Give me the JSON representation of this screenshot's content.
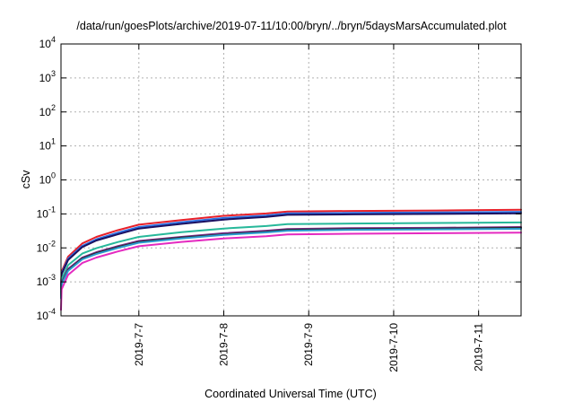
{
  "chart_data": {
    "type": "line",
    "title": "/data/run/goesPlots/archive/2019-07-11/10:00/bryn/../bryn/5daysMarsAccumulated.plot",
    "xlabel": "Coordinated Universal Time (UTC)",
    "ylabel": "cSv",
    "yscale": "log",
    "ylim": [
      0.0001,
      10000
    ],
    "xlim": [
      "2019-07-06 02:00",
      "2019-07-11 12:00"
    ],
    "grid": true,
    "y_ticks": [
      {
        "value": 0.0001,
        "base": "10",
        "exp": "-4"
      },
      {
        "value": 0.001,
        "base": "10",
        "exp": "-3"
      },
      {
        "value": 0.01,
        "base": "10",
        "exp": "-2"
      },
      {
        "value": 0.1,
        "base": "10",
        "exp": "-1"
      },
      {
        "value": 1,
        "base": "10",
        "exp": "0"
      },
      {
        "value": 10,
        "base": "10",
        "exp": "1"
      },
      {
        "value": 100,
        "base": "10",
        "exp": "2"
      },
      {
        "value": 1000,
        "base": "10",
        "exp": "3"
      },
      {
        "value": 10000,
        "base": "10",
        "exp": "4"
      }
    ],
    "x_ticks": [
      {
        "value": "2019-07-07 00:00",
        "label": "2019-7-7"
      },
      {
        "value": "2019-07-08 00:00",
        "label": "2019-7-8"
      },
      {
        "value": "2019-07-09 00:00",
        "label": "2019-7-9"
      },
      {
        "value": "2019-07-10 00:00",
        "label": "2019-7-10"
      },
      {
        "value": "2019-07-11 00:00",
        "label": "2019-7-11"
      }
    ],
    "series": [
      {
        "color": "#e8202a",
        "x": [
          "2019-07-06 02:00",
          "2019-07-06 02:10",
          "2019-07-06 04:00",
          "2019-07-06 08:00",
          "2019-07-06 12:00",
          "2019-07-06 18:00",
          "2019-07-07 00:00",
          "2019-07-07 12:00",
          "2019-07-08 00:00",
          "2019-07-08 12:00",
          "2019-07-08 18:00",
          "2019-07-09 12:00",
          "2019-07-10 12:00",
          "2019-07-11 12:00"
        ],
        "y": [
          0.0008,
          0.002,
          0.0055,
          0.0135,
          0.021,
          0.033,
          0.048,
          0.066,
          0.088,
          0.103,
          0.118,
          0.122,
          0.126,
          0.132
        ]
      },
      {
        "color": "#2f6fe0",
        "x": [
          "2019-07-06 02:00",
          "2019-07-06 02:10",
          "2019-07-06 04:00",
          "2019-07-06 08:00",
          "2019-07-06 12:00",
          "2019-07-06 18:00",
          "2019-07-07 00:00",
          "2019-07-07 12:00",
          "2019-07-08 00:00",
          "2019-07-08 12:00",
          "2019-07-08 18:00",
          "2019-07-09 12:00",
          "2019-07-10 12:00",
          "2019-07-11 12:00"
        ],
        "y": [
          0.0007,
          0.0018,
          0.0048,
          0.0115,
          0.018,
          0.028,
          0.041,
          0.057,
          0.076,
          0.09,
          0.104,
          0.107,
          0.11,
          0.115
        ]
      },
      {
        "color": "#1a1060",
        "x": [
          "2019-07-06 02:00",
          "2019-07-06 02:10",
          "2019-07-06 04:00",
          "2019-07-06 08:00",
          "2019-07-06 12:00",
          "2019-07-06 18:00",
          "2019-07-07 00:00",
          "2019-07-07 12:00",
          "2019-07-08 00:00",
          "2019-07-08 12:00",
          "2019-07-08 18:00",
          "2019-07-09 12:00",
          "2019-07-10 12:00",
          "2019-07-11 12:00"
        ],
        "y": [
          0.0006,
          0.0017,
          0.0044,
          0.0105,
          0.0165,
          0.025,
          0.037,
          0.051,
          0.068,
          0.081,
          0.094,
          0.097,
          0.1,
          0.104
        ]
      },
      {
        "color": "#27b89a",
        "x": [
          "2019-07-06 02:00",
          "2019-07-06 02:10",
          "2019-07-06 04:00",
          "2019-07-06 08:00",
          "2019-07-06 12:00",
          "2019-07-06 18:00",
          "2019-07-07 00:00",
          "2019-07-07 12:00",
          "2019-07-08 00:00",
          "2019-07-08 12:00",
          "2019-07-08 18:00",
          "2019-07-09 12:00",
          "2019-07-10 12:00",
          "2019-07-11 12:00"
        ],
        "y": [
          0.0005,
          0.0012,
          0.0031,
          0.0068,
          0.0098,
          0.0148,
          0.021,
          0.029,
          0.037,
          0.044,
          0.05,
          0.052,
          0.054,
          0.056
        ]
      },
      {
        "color": "#7a2a8c",
        "x": [
          "2019-07-06 02:00",
          "2019-07-06 02:10",
          "2019-07-06 04:00",
          "2019-07-06 08:00",
          "2019-07-06 12:00",
          "2019-07-06 18:00",
          "2019-07-07 00:00",
          "2019-07-07 12:00",
          "2019-07-08 00:00",
          "2019-07-08 12:00",
          "2019-07-08 18:00",
          "2019-07-09 12:00",
          "2019-07-10 12:00",
          "2019-07-11 12:00"
        ],
        "y": [
          0.0004,
          0.00095,
          0.0024,
          0.0052,
          0.0075,
          0.0112,
          0.016,
          0.021,
          0.027,
          0.032,
          0.036,
          0.038,
          0.039,
          0.041
        ]
      },
      {
        "color": "#2a2a2a",
        "x": [
          "2019-07-06 02:00",
          "2019-07-06 02:10",
          "2019-07-06 04:00",
          "2019-07-06 08:00",
          "2019-07-06 12:00",
          "2019-07-06 18:00",
          "2019-07-07 00:00",
          "2019-07-07 12:00",
          "2019-07-08 00:00",
          "2019-07-08 12:00",
          "2019-07-08 18:00",
          "2019-07-09 12:00",
          "2019-07-10 12:00",
          "2019-07-11 12:00"
        ],
        "y": [
          0.00035,
          0.0009,
          0.0022,
          0.0049,
          0.007,
          0.0105,
          0.015,
          0.02,
          0.025,
          0.03,
          0.034,
          0.036,
          0.037,
          0.039
        ]
      },
      {
        "color": "#2a9ad0",
        "x": [
          "2019-07-06 02:00",
          "2019-07-06 02:10",
          "2019-07-06 04:00",
          "2019-07-06 08:00",
          "2019-07-06 12:00",
          "2019-07-06 18:00",
          "2019-07-07 00:00",
          "2019-07-07 12:00",
          "2019-07-08 00:00",
          "2019-07-08 12:00",
          "2019-07-08 18:00",
          "2019-07-09 12:00",
          "2019-07-10 12:00",
          "2019-07-11 12:00"
        ],
        "y": [
          0.00033,
          0.00085,
          0.0021,
          0.0046,
          0.0066,
          0.0099,
          0.0142,
          0.019,
          0.024,
          0.0285,
          0.032,
          0.034,
          0.035,
          0.0365
        ]
      },
      {
        "color": "#e42ac0",
        "x": [
          "2019-07-06 02:00",
          "2019-07-06 02:10",
          "2019-07-06 04:00",
          "2019-07-06 08:00",
          "2019-07-06 12:00",
          "2019-07-06 18:00",
          "2019-07-07 00:00",
          "2019-07-07 12:00",
          "2019-07-08 00:00",
          "2019-07-08 12:00",
          "2019-07-08 18:00",
          "2019-07-09 12:00",
          "2019-07-10 12:00",
          "2019-07-11 12:00"
        ],
        "y": [
          0.00015,
          0.0006,
          0.0016,
          0.0036,
          0.0052,
          0.0078,
          0.0112,
          0.015,
          0.019,
          0.022,
          0.025,
          0.026,
          0.027,
          0.028
        ]
      }
    ]
  }
}
